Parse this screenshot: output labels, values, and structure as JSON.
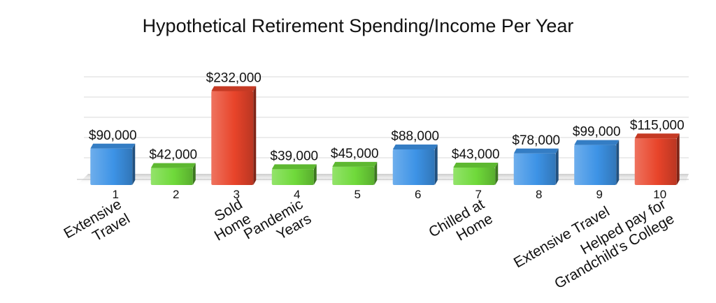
{
  "chart_data": {
    "type": "bar",
    "title": "Hypothetical Retirement Spending/Income Per Year",
    "categories": [
      "1",
      "2",
      "3",
      "4",
      "5",
      "6",
      "7",
      "8",
      "9",
      "10"
    ],
    "values": [
      90000,
      42000,
      232000,
      39000,
      45000,
      88000,
      43000,
      78000,
      99000,
      115000
    ],
    "value_labels": [
      "$90,000",
      "$42,000",
      "$232,000",
      "$39,000",
      "$45,000",
      "$88,000",
      "$43,000",
      "$78,000",
      "$99,000",
      "$115,000"
    ],
    "bar_colors": [
      "#3d93e6",
      "#6fd93a",
      "#e8442a",
      "#6fd93a",
      "#6fd93a",
      "#3d93e6",
      "#6fd93a",
      "#3d93e6",
      "#3d93e6",
      "#e8442a"
    ],
    "annotations": [
      {
        "category": "1",
        "lines": [
          "Extensive",
          "Travel"
        ]
      },
      {
        "category": "3",
        "lines": [
          "Sold",
          "Home"
        ]
      },
      {
        "category": "4",
        "lines": [
          "Pandemic",
          "Years"
        ]
      },
      {
        "category": "7",
        "lines": [
          "Chilled at",
          "Home"
        ]
      },
      {
        "category": "9",
        "lines": [
          "Extensive Travel"
        ]
      },
      {
        "category": "10",
        "lines": [
          "Helped pay for",
          "Grandchild’s College"
        ]
      }
    ],
    "xlabel": "",
    "ylabel": "",
    "ylim": [
      0,
      250000
    ],
    "grid": true,
    "style": "3d-columns"
  }
}
